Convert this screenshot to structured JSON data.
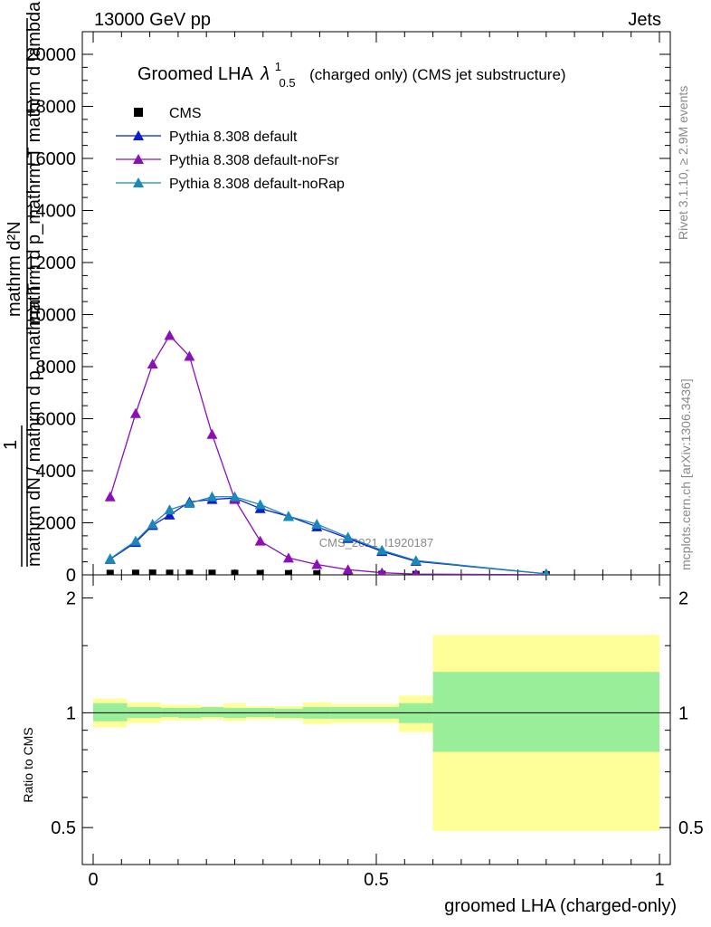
{
  "header": {
    "left": "13000 GeV pp",
    "right": "Jets"
  },
  "side_labels": {
    "rivet": "Rivet 3.1.10, ≥ 2.9M events",
    "mcplots": "mcplots.cern.ch [arXiv:1306.3436]"
  },
  "watermark": "CMS_2021_I1920187",
  "title": {
    "main": "Groomed LHA",
    "lambda": "λ",
    "sup": "1",
    "sub": "0.5",
    "rest": "(charged only) (CMS jet substructure)"
  },
  "ylabel_main": {
    "num_top": "mathrm d²N",
    "den_top": "mathrm d p_mathrm T mathrm d lambda",
    "one": "1",
    "den_bottom": "mathrm dN / mathrm d p_mathrm T"
  },
  "ylabel_ratio": "Ratio to CMS",
  "xlabel": "groomed LHA (charged-only)",
  "colors": {
    "cms": "#000000",
    "default": "#0a1ccc",
    "noFsr": "#8a10b8",
    "noRap": "#1a88b8",
    "band_inner": "#99ee99",
    "band_outer": "#ffff99"
  },
  "chart_data": [
    {
      "type": "line",
      "xlim": [
        0,
        1
      ],
      "ylim": [
        0,
        20000
      ],
      "yticks": [
        0,
        2000,
        4000,
        6000,
        8000,
        10000,
        12000,
        14000,
        16000,
        18000,
        20000
      ],
      "xticks": [
        0,
        0.5,
        1
      ],
      "legend_position": "top-left",
      "x": [
        0.03,
        0.075,
        0.105,
        0.135,
        0.17,
        0.21,
        0.25,
        0.295,
        0.345,
        0.395,
        0.45,
        0.51,
        0.57,
        0.8
      ],
      "series": [
        {
          "name": "CMS",
          "marker": "square",
          "values": [
            55,
            60,
            65,
            60,
            60,
            60,
            55,
            50,
            45,
            40,
            30,
            20,
            15,
            5
          ]
        },
        {
          "name": "Pythia 8.308 default",
          "marker": "triangle",
          "values": [
            600,
            1250,
            1900,
            2300,
            2800,
            2900,
            2950,
            2550,
            2250,
            1850,
            1400,
            900,
            520,
            40
          ]
        },
        {
          "name": "Pythia 8.308 default-noFsr",
          "marker": "triangle",
          "values": [
            3000,
            6200,
            8100,
            9200,
            8400,
            5400,
            2900,
            1300,
            650,
            400,
            200,
            80,
            30,
            5
          ]
        },
        {
          "name": "Pythia 8.308 default-noRap",
          "marker": "triangle",
          "values": [
            620,
            1300,
            1950,
            2500,
            2750,
            3000,
            3000,
            2700,
            2250,
            1950,
            1450,
            950,
            550,
            40
          ]
        }
      ]
    },
    {
      "type": "area",
      "ylabel": "Ratio to CMS",
      "xlabel": "groomed LHA (charged-only)",
      "ylim": [
        0.4,
        2.3
      ],
      "yscale": "log",
      "yticks": [
        0.5,
        1,
        2
      ],
      "reference_line": 1,
      "bands": [
        {
          "x0": 0.0,
          "x1": 0.06,
          "inner": [
            0.95,
            1.06
          ],
          "outer": [
            0.915,
            1.09
          ]
        },
        {
          "x0": 0.06,
          "x1": 0.12,
          "inner": [
            0.97,
            1.035
          ],
          "outer": [
            0.94,
            1.065
          ]
        },
        {
          "x0": 0.12,
          "x1": 0.15,
          "inner": [
            0.975,
            1.03
          ],
          "outer": [
            0.955,
            1.05
          ]
        },
        {
          "x0": 0.15,
          "x1": 0.19,
          "inner": [
            0.97,
            1.03
          ],
          "outer": [
            0.955,
            1.05
          ]
        },
        {
          "x0": 0.19,
          "x1": 0.23,
          "inner": [
            0.975,
            1.035
          ],
          "outer": [
            0.96,
            1.04
          ]
        },
        {
          "x0": 0.23,
          "x1": 0.27,
          "inner": [
            0.97,
            1.03
          ],
          "outer": [
            0.95,
            1.06
          ]
        },
        {
          "x0": 0.27,
          "x1": 0.32,
          "inner": [
            0.975,
            1.03
          ],
          "outer": [
            0.96,
            1.04
          ]
        },
        {
          "x0": 0.32,
          "x1": 0.37,
          "inner": [
            0.97,
            1.025
          ],
          "outer": [
            0.96,
            1.04
          ]
        },
        {
          "x0": 0.37,
          "x1": 0.42,
          "inner": [
            0.965,
            1.035
          ],
          "outer": [
            0.935,
            1.065
          ]
        },
        {
          "x0": 0.42,
          "x1": 0.48,
          "inner": [
            0.965,
            1.035
          ],
          "outer": [
            0.94,
            1.055
          ]
        },
        {
          "x0": 0.48,
          "x1": 0.54,
          "inner": [
            0.965,
            1.035
          ],
          "outer": [
            0.94,
            1.055
          ]
        },
        {
          "x0": 0.54,
          "x1": 0.6,
          "inner": [
            0.94,
            1.06
          ],
          "outer": [
            0.89,
            1.11
          ]
        },
        {
          "x0": 0.6,
          "x1": 1.0,
          "inner": [
            0.79,
            1.28
          ],
          "outer": [
            0.49,
            1.6
          ]
        }
      ]
    }
  ]
}
